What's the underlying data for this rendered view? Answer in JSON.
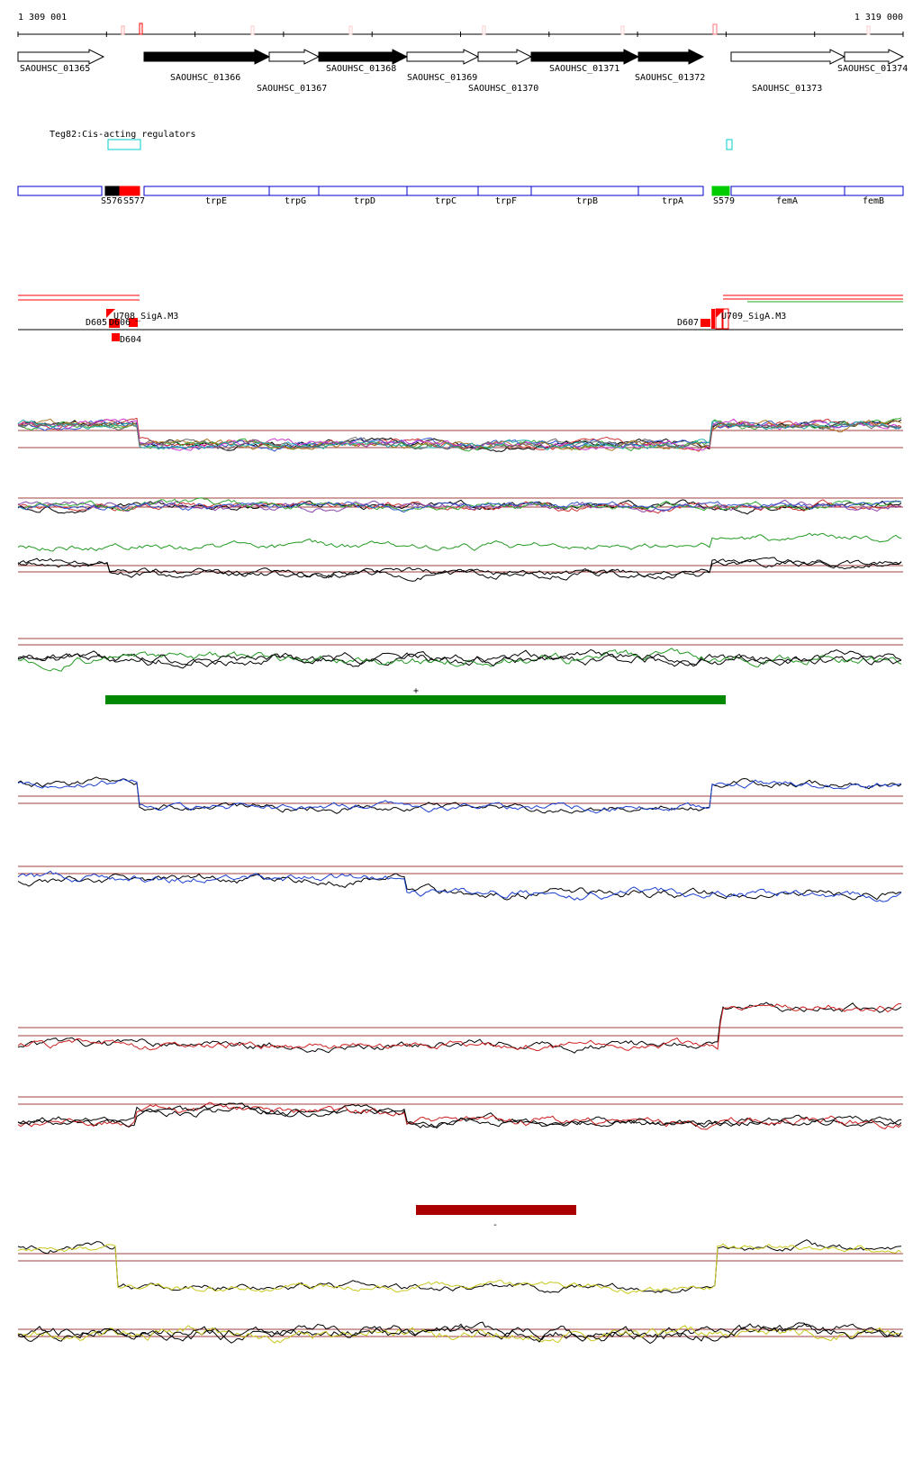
{
  "coords": {
    "start": "1 309 001",
    "end": "1 319 000"
  },
  "genes": [
    {
      "id": "SAOUHSC_01365",
      "strand": "+",
      "filled": false
    },
    {
      "id": "SAOUHSC_01366",
      "strand": "+",
      "filled": true
    },
    {
      "id": "SAOUHSC_01367",
      "strand": "+",
      "filled": false
    },
    {
      "id": "SAOUHSC_01368",
      "strand": "+",
      "filled": true
    },
    {
      "id": "SAOUHSC_01369",
      "strand": "+",
      "filled": false
    },
    {
      "id": "SAOUHSC_01370",
      "strand": "+",
      "filled": false
    },
    {
      "id": "SAOUHSC_01371",
      "strand": "+",
      "filled": true
    },
    {
      "id": "SAOUHSC_01372",
      "strand": "+",
      "filled": true
    },
    {
      "id": "SAOUHSC_01373",
      "strand": "+",
      "filled": false
    },
    {
      "id": "SAOUHSC_01374",
      "strand": "+",
      "filled": false
    }
  ],
  "regulator_label": "Teg82:Cis-acting regulators",
  "segments": [
    {
      "label": "",
      "color": "blue"
    },
    {
      "label": "S576",
      "color": "black"
    },
    {
      "label": "S577",
      "color": "red"
    },
    {
      "label": "trpE",
      "color": "blue"
    },
    {
      "label": "trpG",
      "color": "blue"
    },
    {
      "label": "trpD",
      "color": "blue"
    },
    {
      "label": "trpC",
      "color": "blue"
    },
    {
      "label": "trpF",
      "color": "blue"
    },
    {
      "label": "trpB",
      "color": "blue"
    },
    {
      "label": "trpA",
      "color": "blue"
    },
    {
      "label": "S579",
      "color": "green"
    },
    {
      "label": "femA",
      "color": "blue"
    },
    {
      "label": "femB",
      "color": "blue"
    }
  ],
  "features": {
    "left_sigA": "U708_SigA.M3",
    "left_d1": "D605",
    "left_d2": "D606",
    "left_d3": "D604",
    "right_d": "D607",
    "right_u": "U709_SigA.M3"
  },
  "strand_marks": {
    "plus": "+",
    "minus": "-"
  },
  "colors": {
    "gene_filled": "#000000",
    "segment_border": "#0000cc",
    "red": "#ff0000",
    "green_segment": "#00cc00",
    "green_bar": "#008800",
    "dark_red_bar": "#aa0000",
    "cyan_box": "#00cccc",
    "profile_blue": "#1a3fcf",
    "profile_green": "#239a23",
    "profile_red": "#cc1f1f",
    "profile_yellow": "#c8c81e",
    "threshold": "#a04040"
  }
}
